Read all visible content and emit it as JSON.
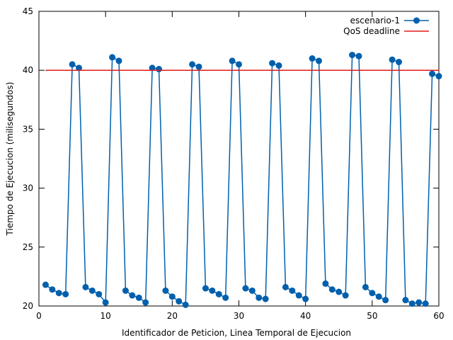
{
  "chart_data": {
    "type": "line",
    "xlabel": "Identificador de Peticion, Linea Temporal de Ejecucion",
    "ylabel": "Tiempo de Ejecucion (milisegundos)",
    "xlim": [
      0,
      60
    ],
    "ylim": [
      20,
      45
    ],
    "xticks": [
      0,
      10,
      20,
      30,
      40,
      50,
      60
    ],
    "yticks": [
      20,
      25,
      30,
      35,
      40,
      45
    ],
    "grid": false,
    "legend_position": "top-right",
    "series": [
      {
        "name": "escenario-1",
        "color": "#0060ad",
        "marker": "circle",
        "x": [
          1,
          2,
          3,
          4,
          5,
          6,
          7,
          8,
          9,
          10,
          11,
          12,
          13,
          14,
          15,
          16,
          17,
          18,
          19,
          20,
          21,
          22,
          23,
          24,
          25,
          26,
          27,
          28,
          29,
          30,
          31,
          32,
          33,
          34,
          35,
          36,
          37,
          38,
          39,
          40,
          41,
          42,
          43,
          44,
          45,
          46,
          47,
          48,
          49,
          50,
          51,
          52,
          53,
          54,
          55,
          56,
          57,
          58,
          59,
          60
        ],
        "values": [
          21.8,
          21.4,
          21.1,
          21.0,
          40.5,
          40.2,
          21.6,
          21.3,
          21.0,
          20.3,
          41.1,
          40.8,
          21.3,
          20.9,
          20.7,
          20.3,
          40.2,
          40.1,
          21.3,
          20.8,
          20.4,
          20.1,
          40.5,
          40.3,
          21.5,
          21.3,
          21.0,
          20.7,
          40.8,
          40.5,
          21.5,
          21.3,
          20.7,
          20.6,
          40.6,
          40.4,
          21.6,
          21.3,
          20.9,
          20.6,
          41.0,
          40.8,
          21.9,
          21.4,
          21.2,
          20.9,
          41.3,
          41.2,
          21.6,
          21.1,
          20.8,
          20.5,
          40.9,
          40.7,
          20.5,
          20.2,
          20.3,
          20.2,
          39.7,
          39.5
        ]
      },
      {
        "name": "QoS deadline",
        "color": "#e31a1c",
        "marker": "none",
        "constant": 40
      }
    ]
  }
}
